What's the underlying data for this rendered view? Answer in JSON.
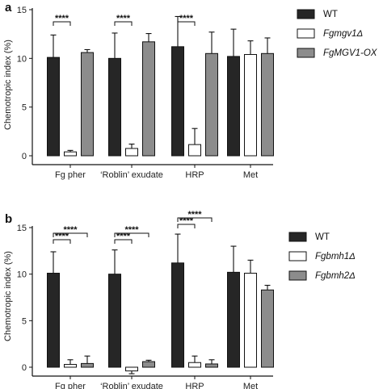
{
  "chart_data": [
    {
      "panel": "a",
      "type": "bar",
      "ylabel": "Chemotropic index (%)",
      "ylim": [
        0,
        15
      ],
      "yticks": [
        "0",
        "5",
        "10",
        "15"
      ],
      "categories": [
        "Fg pher",
        "‘Roblin’ exudate",
        "HRP",
        "Met"
      ],
      "series": [
        {
          "name": "WT",
          "color": "#262626",
          "values": [
            10.1,
            10.0,
            11.2,
            10.2
          ],
          "errors": [
            2.3,
            2.6,
            3.1,
            2.8
          ]
        },
        {
          "name": "Fgmgv1Δ",
          "color": "#ffffff",
          "values": [
            0.4,
            0.75,
            1.15,
            10.4
          ],
          "errors": [
            0.15,
            0.45,
            1.65,
            1.4
          ]
        },
        {
          "name": "FgMGV1-OX",
          "color": "#8c8c8c",
          "values": [
            10.6,
            11.7,
            10.5,
            10.5
          ],
          "errors": [
            0.3,
            0.85,
            2.2,
            1.6
          ]
        }
      ],
      "significance": [
        {
          "category": 0,
          "from": 0,
          "to": 1,
          "label": "****"
        },
        {
          "category": 1,
          "from": 0,
          "to": 1,
          "label": "****"
        },
        {
          "category": 2,
          "from": 0,
          "to": 1,
          "label": "****"
        }
      ]
    },
    {
      "panel": "b",
      "type": "bar",
      "ylabel": "Chemotropic index (%)",
      "ylim": [
        0,
        15
      ],
      "yticks": [
        "0",
        "5",
        "10",
        "15"
      ],
      "categories": [
        "Fg pher",
        "‘Roblin’ exudate",
        "HRP",
        "Met"
      ],
      "series": [
        {
          "name": "WT",
          "color": "#262626",
          "values": [
            10.1,
            10.0,
            11.2,
            10.2
          ],
          "errors": [
            2.3,
            2.6,
            3.1,
            2.8
          ]
        },
        {
          "name": "Fgbmh1Δ",
          "color": "#ffffff",
          "values": [
            0.3,
            -0.4,
            0.5,
            10.1
          ],
          "errors": [
            0.5,
            0.3,
            0.7,
            1.4
          ]
        },
        {
          "name": "Fgbmh2Δ",
          "color": "#8c8c8c",
          "values": [
            0.4,
            0.6,
            0.35,
            8.3
          ],
          "errors": [
            0.8,
            0.15,
            0.45,
            0.5
          ]
        }
      ],
      "significance": [
        {
          "category": 0,
          "from": 0,
          "to": 1,
          "label": "****"
        },
        {
          "category": 0,
          "from": 0,
          "to": 2,
          "label": "****"
        },
        {
          "category": 1,
          "from": 0,
          "to": 1,
          "label": "****"
        },
        {
          "category": 1,
          "from": 0,
          "to": 2,
          "label": "****"
        },
        {
          "category": 2,
          "from": 0,
          "to": 1,
          "label": "****"
        },
        {
          "category": 2,
          "from": 0,
          "to": 2,
          "label": "****"
        }
      ]
    }
  ]
}
